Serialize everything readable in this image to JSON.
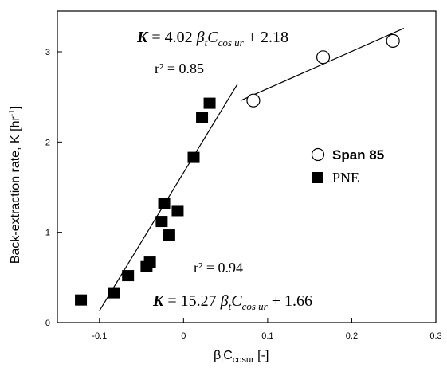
{
  "chart_data": {
    "type": "scatter",
    "xlabel_main": "β",
    "xlabel_sub1": "t",
    "xlabel_mid": "C",
    "xlabel_sub2": "cosur",
    "xlabel_unit": " [-]",
    "ylabel_main": "Back-extraction rate, K [hr",
    "ylabel_sup": "-1",
    "ylabel_end": "]",
    "xlim": [
      -0.15,
      0.3
    ],
    "ylim": [
      0,
      3.45
    ],
    "x_ticks": [
      -0.1,
      0,
      0.1,
      0.2,
      0.3
    ],
    "x_tick_labels": [
      "-0.1",
      "0",
      "0.1",
      "0.2",
      "0.3"
    ],
    "y_ticks": [
      0,
      1,
      2,
      3
    ],
    "y_tick_labels": [
      "0",
      "1",
      "2",
      "3"
    ],
    "grid": false,
    "legend_position": "right-middle",
    "series": [
      {
        "name": "Span 85",
        "marker": "open-circle",
        "points": [
          {
            "x": 0.083,
            "y": 2.46
          },
          {
            "x": 0.166,
            "y": 2.94
          },
          {
            "x": 0.249,
            "y": 3.12
          }
        ]
      },
      {
        "name": "PNE",
        "marker": "filled-square",
        "points": [
          {
            "x": -0.122,
            "y": 0.25
          },
          {
            "x": -0.083,
            "y": 0.33
          },
          {
            "x": -0.066,
            "y": 0.52
          },
          {
            "x": -0.044,
            "y": 0.62
          },
          {
            "x": -0.04,
            "y": 0.67
          },
          {
            "x": -0.026,
            "y": 1.12
          },
          {
            "x": -0.023,
            "y": 1.32
          },
          {
            "x": -0.017,
            "y": 0.97
          },
          {
            "x": -0.007,
            "y": 1.24
          },
          {
            "x": 0.012,
            "y": 1.83
          },
          {
            "x": 0.022,
            "y": 2.27
          },
          {
            "x": 0.031,
            "y": 2.43
          }
        ]
      }
    ],
    "fit_lines": [
      {
        "series": "PNE",
        "x": [
          -0.1,
          0.064
        ],
        "y": [
          0.13,
          2.64
        ]
      },
      {
        "series": "Span 85",
        "x": [
          0.068,
          0.262
        ],
        "y": [
          2.46,
          3.26
        ]
      }
    ],
    "annotations": {
      "eq_top": {
        "k": "K",
        "eq_part": " = 4.02 ",
        "beta": "β",
        "sub_t": "t",
        "c": "C",
        "sub_cos": "cos ur",
        "tail": " + 2.18"
      },
      "r2_top": "r² = 0.85",
      "r2_bottom": "r² = 0.94",
      "eq_bottom": {
        "k": "K",
        "eq_part": " = 15.27 ",
        "beta": "β",
        "sub_t": "t",
        "c": "C",
        "sub_cos": "cos ur",
        "tail": " + 1.66"
      }
    }
  }
}
